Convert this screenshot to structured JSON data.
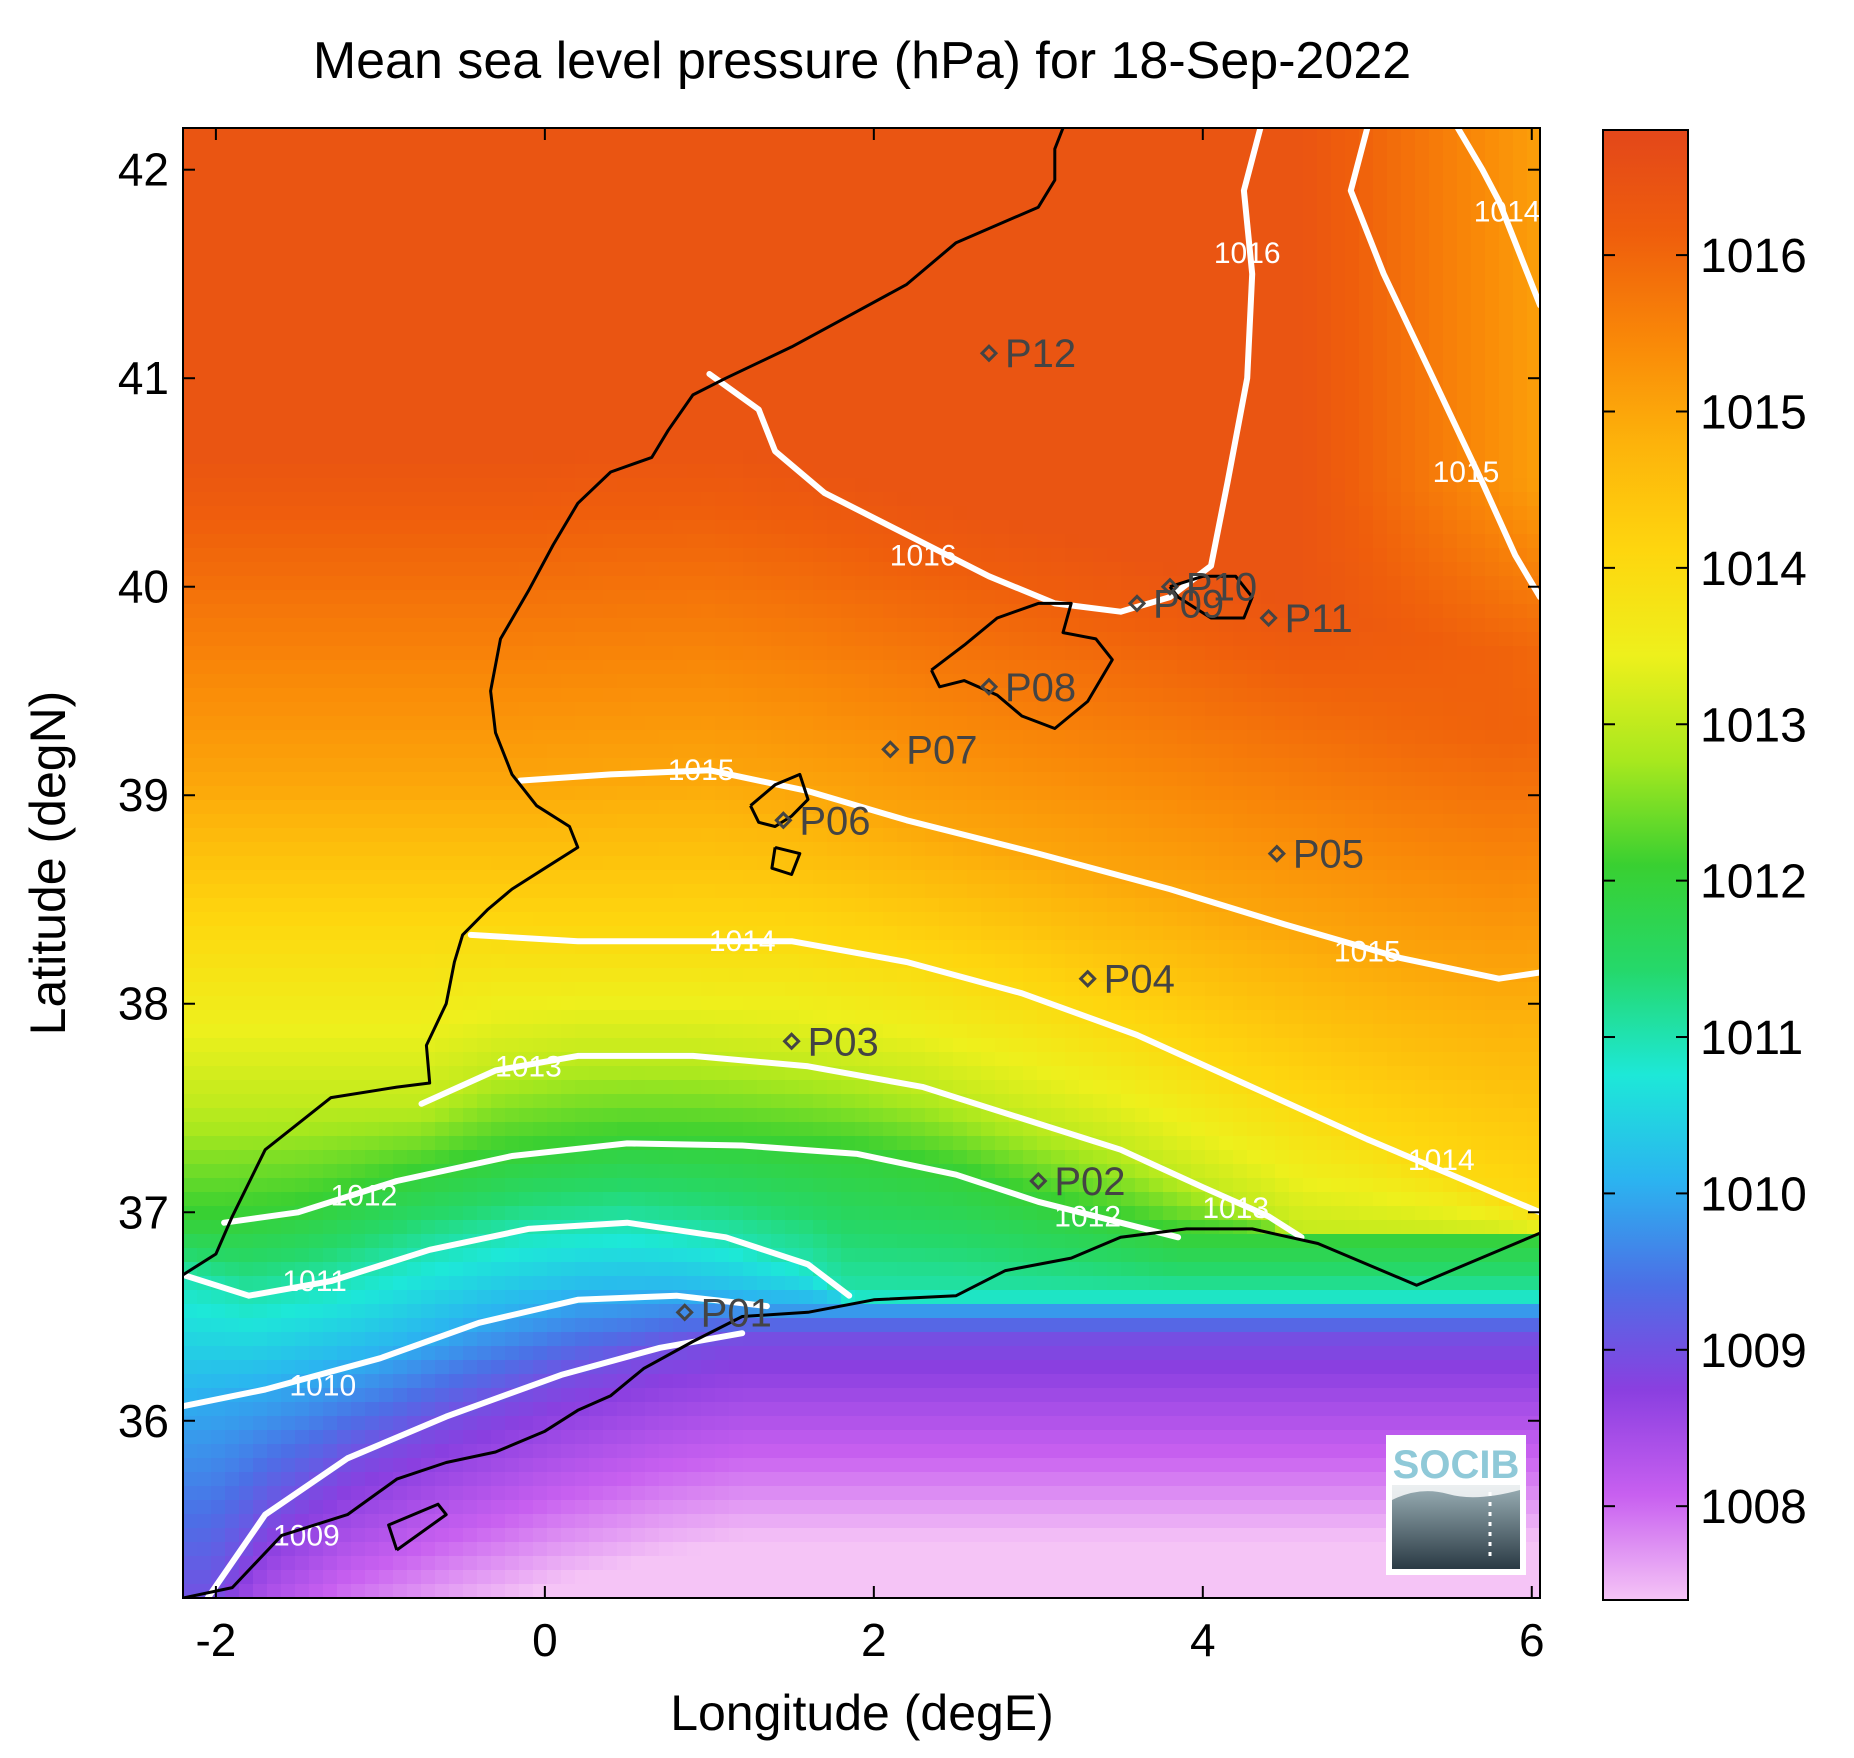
{
  "chart_data": {
    "type": "heatmap",
    "title": "Mean sea level pressure (hPa) for 18-Sep-2022",
    "xlabel": "Longitude (degE)",
    "ylabel": "Latitude (degN)",
    "xlim": [
      -2.2,
      6.05
    ],
    "ylim": [
      35.15,
      42.2
    ],
    "xticks": [
      -2,
      0,
      2,
      4,
      6
    ],
    "yticks": [
      36,
      37,
      38,
      39,
      40,
      41,
      42
    ],
    "colorbar": {
      "min": 1007.4,
      "max": 1016.8,
      "ticks": [
        1008,
        1009,
        1010,
        1011,
        1012,
        1013,
        1014,
        1015,
        1016
      ],
      "colormap": [
        "#f5c4f6",
        "#c860f0",
        "#8a3fe0",
        "#4c6fe6",
        "#2bb4f0",
        "#1de8d8",
        "#25d86a",
        "#39d031",
        "#a8e81e",
        "#eef01c",
        "#fed60e",
        "#fdb30b",
        "#f98808",
        "#ef5e0c",
        "#e3471a"
      ]
    },
    "contours": [
      {
        "level": 1009,
        "label": "1009",
        "label_pos": [
          -1.45,
          35.45
        ],
        "path": [
          [
            -2.05,
            35.15
          ],
          [
            -1.7,
            35.55
          ],
          [
            -1.2,
            35.82
          ],
          [
            -0.6,
            36.02
          ],
          [
            0.1,
            36.22
          ],
          [
            0.7,
            36.35
          ],
          [
            1.2,
            36.42
          ]
        ]
      },
      {
        "level": 1010,
        "label": "1010",
        "label_pos": [
          -1.35,
          36.17
        ],
        "path": [
          [
            -2.2,
            36.07
          ],
          [
            -1.7,
            36.15
          ],
          [
            -1.0,
            36.3
          ],
          [
            -0.4,
            36.47
          ],
          [
            0.2,
            36.58
          ],
          [
            0.8,
            36.6
          ],
          [
            1.35,
            36.55
          ]
        ]
      },
      {
        "level": 1011,
        "label": "1011",
        "label_pos": [
          -1.4,
          36.67
        ],
        "path": [
          [
            -2.2,
            36.7
          ],
          [
            -1.8,
            36.6
          ],
          [
            -1.3,
            36.67
          ],
          [
            -0.7,
            36.82
          ],
          [
            -0.1,
            36.92
          ],
          [
            0.5,
            36.95
          ],
          [
            1.1,
            36.88
          ],
          [
            1.6,
            36.75
          ],
          [
            1.85,
            36.6
          ]
        ]
      },
      {
        "level": 1012,
        "label": "1012",
        "label_pos": [
          -1.1,
          37.08
        ],
        "label2": "1012",
        "label2_pos": [
          3.3,
          36.98
        ],
        "path": [
          [
            -1.95,
            36.95
          ],
          [
            -1.5,
            37.0
          ],
          [
            -0.9,
            37.15
          ],
          [
            -0.2,
            37.27
          ],
          [
            0.5,
            37.33
          ],
          [
            1.2,
            37.32
          ],
          [
            1.9,
            37.28
          ],
          [
            2.5,
            37.18
          ],
          [
            3.0,
            37.05
          ],
          [
            3.5,
            36.95
          ],
          [
            3.85,
            36.88
          ]
        ]
      },
      {
        "level": 1013,
        "label": "1013",
        "label_pos": [
          -0.1,
          37.7
        ],
        "label2": "1013",
        "label2_pos": [
          4.2,
          37.02
        ],
        "path": [
          [
            -0.75,
            37.52
          ],
          [
            -0.3,
            37.68
          ],
          [
            0.2,
            37.75
          ],
          [
            0.9,
            37.75
          ],
          [
            1.6,
            37.7
          ],
          [
            2.3,
            37.6
          ],
          [
            2.9,
            37.45
          ],
          [
            3.5,
            37.3
          ],
          [
            4.0,
            37.12
          ],
          [
            4.4,
            36.98
          ],
          [
            4.6,
            36.88
          ]
        ]
      },
      {
        "level": 1014,
        "label": "1014",
        "label_pos": [
          1.2,
          38.3
        ],
        "label2": "1014",
        "label2_pos": [
          5.45,
          37.25
        ],
        "path": [
          [
            -0.45,
            38.33
          ],
          [
            0.2,
            38.3
          ],
          [
            0.8,
            38.3
          ],
          [
            1.5,
            38.3
          ],
          [
            2.2,
            38.2
          ],
          [
            2.9,
            38.05
          ],
          [
            3.6,
            37.85
          ],
          [
            4.3,
            37.6
          ],
          [
            5.0,
            37.35
          ],
          [
            5.6,
            37.15
          ],
          [
            6.05,
            37.0
          ]
        ]
      },
      {
        "level": 1015,
        "label": "1015",
        "label_pos": [
          0.95,
          39.12
        ],
        "label2": "1015",
        "label2_pos": [
          5.0,
          38.25
        ],
        "path": [
          [
            -0.15,
            39.07
          ],
          [
            0.4,
            39.1
          ],
          [
            1.0,
            39.12
          ],
          [
            1.6,
            39.02
          ],
          [
            2.2,
            38.88
          ],
          [
            3.0,
            38.72
          ],
          [
            3.8,
            38.55
          ],
          [
            4.5,
            38.38
          ],
          [
            5.2,
            38.22
          ],
          [
            5.8,
            38.12
          ],
          [
            6.05,
            38.15
          ]
        ]
      },
      {
        "level": 1015,
        "label": "1015",
        "label_pos": [
          5.6,
          40.55
        ],
        "path": [
          [
            5.0,
            42.2
          ],
          [
            4.9,
            41.9
          ],
          [
            5.1,
            41.5
          ],
          [
            5.4,
            41.0
          ],
          [
            5.7,
            40.5
          ],
          [
            5.9,
            40.15
          ],
          [
            6.05,
            39.95
          ]
        ]
      },
      {
        "level": 1016,
        "label": "1016",
        "label_pos": [
          2.3,
          40.15
        ],
        "label2": "1016",
        "label2_pos": [
          4.27,
          41.6
        ],
        "path": [
          [
            1.0,
            41.02
          ],
          [
            1.3,
            40.85
          ],
          [
            1.4,
            40.65
          ],
          [
            1.7,
            40.45
          ],
          [
            2.2,
            40.25
          ],
          [
            2.7,
            40.05
          ],
          [
            3.1,
            39.92
          ],
          [
            3.5,
            39.88
          ],
          [
            3.8,
            39.95
          ],
          [
            4.05,
            40.1
          ],
          [
            4.15,
            40.5
          ],
          [
            4.27,
            41.0
          ],
          [
            4.3,
            41.5
          ],
          [
            4.25,
            41.9
          ],
          [
            4.35,
            42.2
          ]
        ]
      },
      {
        "level": 1014,
        "label": "1014",
        "label_pos": [
          5.85,
          41.8
        ],
        "path": [
          [
            5.55,
            42.2
          ],
          [
            5.7,
            42.0
          ],
          [
            5.8,
            41.85
          ],
          [
            6.05,
            41.35
          ]
        ]
      }
    ],
    "stations": [
      {
        "id": "P01",
        "lon": 0.85,
        "lat": 36.52
      },
      {
        "id": "P02",
        "lon": 3.0,
        "lat": 37.15
      },
      {
        "id": "P03",
        "lon": 1.5,
        "lat": 37.82
      },
      {
        "id": "P04",
        "lon": 3.3,
        "lat": 38.12
      },
      {
        "id": "P05",
        "lon": 4.45,
        "lat": 38.72
      },
      {
        "id": "P06",
        "lon": 1.45,
        "lat": 38.88
      },
      {
        "id": "P07",
        "lon": 2.1,
        "lat": 39.22
      },
      {
        "id": "P08",
        "lon": 2.7,
        "lat": 39.52
      },
      {
        "id": "P09",
        "lon": 3.6,
        "lat": 39.92
      },
      {
        "id": "P10",
        "lon": 3.8,
        "lat": 40.0
      },
      {
        "id": "P11",
        "lon": 4.4,
        "lat": 39.85
      },
      {
        "id": "P12",
        "lon": 2.7,
        "lat": 41.12
      }
    ],
    "coastlines": [
      [
        [
          -2.2,
          36.7
        ],
        [
          -2.0,
          36.8
        ],
        [
          -1.9,
          36.98
        ],
        [
          -1.7,
          37.3
        ],
        [
          -1.3,
          37.55
        ],
        [
          -0.9,
          37.6
        ],
        [
          -0.7,
          37.62
        ],
        [
          -0.72,
          37.8
        ],
        [
          -0.6,
          38.0
        ],
        [
          -0.55,
          38.2
        ],
        [
          -0.5,
          38.33
        ],
        [
          -0.35,
          38.45
        ],
        [
          -0.2,
          38.55
        ],
        [
          0.0,
          38.65
        ],
        [
          0.2,
          38.75
        ],
        [
          0.15,
          38.85
        ],
        [
          -0.05,
          38.95
        ],
        [
          -0.2,
          39.1
        ],
        [
          -0.3,
          39.3
        ],
        [
          -0.33,
          39.5
        ],
        [
          -0.27,
          39.75
        ],
        [
          -0.1,
          39.98
        ],
        [
          0.05,
          40.2
        ],
        [
          0.2,
          40.4
        ],
        [
          0.4,
          40.55
        ],
        [
          0.65,
          40.62
        ],
        [
          0.75,
          40.75
        ],
        [
          0.9,
          40.92
        ],
        [
          1.1,
          41.0
        ],
        [
          1.5,
          41.15
        ],
        [
          1.85,
          41.3
        ],
        [
          2.2,
          41.45
        ],
        [
          2.5,
          41.65
        ],
        [
          3.0,
          41.82
        ],
        [
          3.1,
          41.95
        ],
        [
          3.1,
          42.1
        ],
        [
          3.15,
          42.2
        ]
      ],
      [
        [
          -2.2,
          35.15
        ],
        [
          -1.9,
          35.2
        ],
        [
          -1.6,
          35.45
        ],
        [
          -1.2,
          35.55
        ],
        [
          -0.9,
          35.72
        ],
        [
          -0.6,
          35.8
        ],
        [
          -0.3,
          35.85
        ],
        [
          0.0,
          35.95
        ],
        [
          0.2,
          36.05
        ],
        [
          0.4,
          36.12
        ],
        [
          0.6,
          36.25
        ],
        [
          0.9,
          36.38
        ],
        [
          1.2,
          36.5
        ],
        [
          1.6,
          36.52
        ],
        [
          2.0,
          36.58
        ],
        [
          2.5,
          36.6
        ],
        [
          2.8,
          36.72
        ],
        [
          3.2,
          36.78
        ],
        [
          3.5,
          36.88
        ],
        [
          3.9,
          36.92
        ],
        [
          4.3,
          36.92
        ],
        [
          4.7,
          36.85
        ],
        [
          5.0,
          36.75
        ],
        [
          5.3,
          36.65
        ],
        [
          5.6,
          36.75
        ],
        [
          6.05,
          36.9
        ]
      ],
      [
        [
          2.35,
          39.6
        ],
        [
          2.55,
          39.72
        ],
        [
          2.75,
          39.85
        ],
        [
          3.0,
          39.92
        ],
        [
          3.2,
          39.92
        ],
        [
          3.15,
          39.78
        ],
        [
          3.35,
          39.75
        ],
        [
          3.45,
          39.65
        ],
        [
          3.3,
          39.45
        ],
        [
          3.1,
          39.32
        ],
        [
          2.9,
          39.38
        ],
        [
          2.75,
          39.48
        ],
        [
          2.55,
          39.55
        ],
        [
          2.4,
          39.52
        ],
        [
          2.35,
          39.6
        ]
      ],
      [
        [
          3.8,
          40.0
        ],
        [
          4.0,
          40.05
        ],
        [
          4.2,
          40.05
        ],
        [
          4.3,
          39.95
        ],
        [
          4.25,
          39.85
        ],
        [
          4.05,
          39.85
        ],
        [
          3.85,
          39.95
        ],
        [
          3.8,
          40.0
        ]
      ],
      [
        [
          1.25,
          38.95
        ],
        [
          1.4,
          39.05
        ],
        [
          1.55,
          39.1
        ],
        [
          1.6,
          38.98
        ],
        [
          1.5,
          38.9
        ],
        [
          1.4,
          38.85
        ],
        [
          1.3,
          38.87
        ],
        [
          1.25,
          38.95
        ]
      ],
      [
        [
          1.4,
          38.75
        ],
        [
          1.55,
          38.72
        ],
        [
          1.5,
          38.62
        ],
        [
          1.38,
          38.65
        ],
        [
          1.4,
          38.75
        ]
      ],
      [
        [
          -0.9,
          35.38
        ],
        [
          -0.6,
          35.55
        ],
        [
          -0.65,
          35.6
        ],
        [
          -0.95,
          35.5
        ],
        [
          -0.9,
          35.38
        ]
      ]
    ]
  },
  "logo": {
    "text": "SOCIB"
  }
}
